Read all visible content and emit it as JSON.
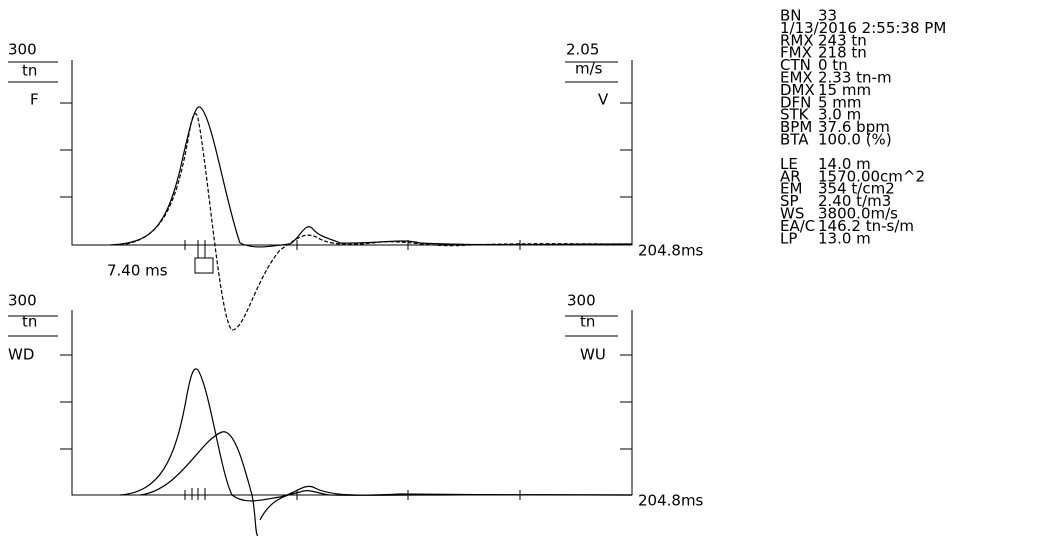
{
  "top_panel": {
    "left_scale": "300",
    "left_unit": "tn",
    "left_trace": "F",
    "right_scale": "2.05",
    "right_unit": "m/s",
    "right_trace": "V",
    "time_span": "204.8ms",
    "marker_time": "7.40 ms"
  },
  "bottom_panel": {
    "left_scale": "300",
    "left_unit": "tn",
    "left_trace": "WD",
    "right_scale": "300",
    "right_unit": "tn",
    "right_trace": "WU",
    "time_span": "204.8ms"
  },
  "info": {
    "block1": [
      [
        "BN",
        "33"
      ],
      [
        "",
        "1/13/2016 2:55:38 PM"
      ],
      [
        "RMX",
        "243 tn"
      ],
      [
        "FMX",
        "218 tn"
      ],
      [
        "CTN",
        "0 tn"
      ],
      [
        "EMX",
        "2.33 tn-m"
      ],
      [
        "DMX",
        "15 mm"
      ],
      [
        "DFN",
        "5 mm"
      ],
      [
        "STK",
        "3.0 m"
      ],
      [
        "BPM",
        "37.6 bpm"
      ],
      [
        "BTA",
        "100.0 (%)"
      ]
    ],
    "block2": [
      [
        "LE",
        "14.0 m"
      ],
      [
        "AR",
        "1570.00cm^2"
      ],
      [
        "EM",
        "354 t/cm2"
      ],
      [
        "SP",
        "2.40 t/m3"
      ],
      [
        "WS",
        "3800.0m/s"
      ],
      [
        "EA/C",
        "146.2 tn-s/m"
      ],
      [
        "LP",
        "13.0 m"
      ]
    ]
  }
}
